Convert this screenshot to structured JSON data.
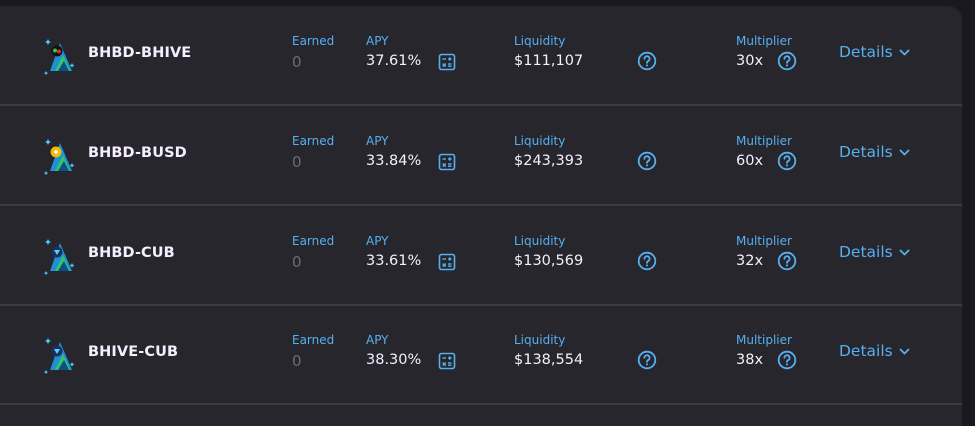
{
  "farms": [
    {
      "pair": "BHBD-BHIVE",
      "earned_label": "Earned",
      "earned": "0",
      "apy_label": "APY",
      "apy": "37.61%",
      "liquidity_label": "Liquidity",
      "liquidity": "$111,107",
      "multiplier_label": "Multiplier",
      "multiplier": "30x",
      "details_label": "Details",
      "token_icon": "bhive-token-icon"
    },
    {
      "pair": "BHBD-BUSD",
      "earned_label": "Earned",
      "earned": "0",
      "apy_label": "APY",
      "apy": "33.84%",
      "liquidity_label": "Liquidity",
      "liquidity": "$243,393",
      "multiplier_label": "Multiplier",
      "multiplier": "60x",
      "details_label": "Details",
      "token_icon": "busd-token-icon"
    },
    {
      "pair": "BHBD-CUB",
      "earned_label": "Earned",
      "earned": "0",
      "apy_label": "APY",
      "apy": "33.61%",
      "liquidity_label": "Liquidity",
      "liquidity": "$130,569",
      "multiplier_label": "Multiplier",
      "multiplier": "32x",
      "details_label": "Details",
      "token_icon": "cub-token-icon"
    },
    {
      "pair": "BHIVE-CUB",
      "earned_label": "Earned",
      "earned": "0",
      "apy_label": "APY",
      "apy": "38.30%",
      "liquidity_label": "Liquidity",
      "liquidity": "$138,554",
      "multiplier_label": "Multiplier",
      "multiplier": "38x",
      "details_label": "Details",
      "token_icon": "cub-token-icon"
    }
  ],
  "colors": {
    "accent": "#56b0f0",
    "text": "#f4eeff",
    "muted": "#6e6a7c",
    "panel": "#27262d",
    "background": "#1a191f",
    "divider": "#3b3a47"
  }
}
